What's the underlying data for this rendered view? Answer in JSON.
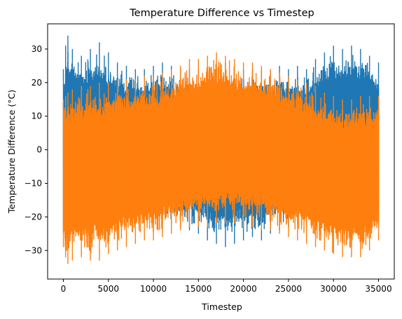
{
  "chart_data": {
    "type": "line",
    "title": "Temperature Difference vs Timestep",
    "xlabel": "Timestep",
    "ylabel": "Temperature Difference (°C)",
    "xlim": [
      -1750,
      36750
    ],
    "ylim": [
      -38.5,
      37.5
    ],
    "xticks": [
      0,
      5000,
      10000,
      15000,
      20000,
      25000,
      30000,
      35000
    ],
    "xtick_labels": [
      "0",
      "5000",
      "10000",
      "15000",
      "20000",
      "25000",
      "30000",
      "35000"
    ],
    "yticks": [
      -30,
      -20,
      -10,
      0,
      10,
      20,
      30
    ],
    "ytick_labels": [
      "−30",
      "−20",
      "−10",
      "0",
      "10",
      "20",
      "30"
    ],
    "grid": false,
    "legend": "none",
    "series": [
      {
        "color": "#1f77b4",
        "envelope": {
          "x": [
            0,
            250,
            500,
            1000,
            2000,
            3000,
            4000,
            5000,
            6000,
            7000,
            8000,
            9000,
            10000,
            11000,
            12000,
            13000,
            14000,
            15000,
            16000,
            17000,
            18000,
            19000,
            20000,
            21000,
            22000,
            23000,
            24000,
            25000,
            26000,
            27000,
            28000,
            29000,
            30000,
            31000,
            32000,
            33000,
            34000,
            35000
          ],
          "upper": [
            24,
            31,
            34,
            30,
            28,
            30,
            32,
            29,
            26,
            25,
            24,
            24,
            25,
            26,
            25,
            24,
            24,
            24,
            24,
            24,
            26,
            24,
            24,
            24,
            24,
            24,
            25,
            24,
            25,
            24,
            27,
            29,
            31,
            30,
            31,
            30,
            28,
            26
          ],
          "lower": [
            -25,
            -27,
            -28,
            -27,
            -26,
            -25,
            -25,
            -24,
            -23,
            -23,
            -22,
            -22,
            -21,
            -22,
            -22,
            -23,
            -24,
            -25,
            -27,
            -28,
            -29,
            -28,
            -27,
            -26,
            -27,
            -25,
            -24,
            -23,
            -22,
            -22,
            -22,
            -22,
            -22,
            -22,
            -22,
            -23,
            -22,
            -22
          ]
        }
      },
      {
        "color": "#ff7f0e",
        "envelope": {
          "x": [
            0,
            250,
            500,
            1000,
            2000,
            3000,
            4000,
            5000,
            6000,
            7000,
            8000,
            9000,
            10000,
            11000,
            12000,
            13000,
            14000,
            15000,
            16000,
            17000,
            18000,
            19000,
            20000,
            21000,
            22000,
            23000,
            24000,
            25000,
            26000,
            27000,
            28000,
            29000,
            30000,
            31000,
            32000,
            33000,
            34000,
            35000
          ],
          "upper": [
            15,
            16,
            17,
            18,
            19,
            19,
            20,
            20,
            21,
            21,
            21,
            22,
            22,
            23,
            24,
            25,
            27,
            27,
            28,
            29,
            28,
            27,
            26,
            26,
            25,
            24,
            23,
            22,
            21,
            20,
            19,
            17,
            16,
            15,
            15,
            16,
            16,
            16
          ],
          "lower": [
            -29,
            -32,
            -34,
            -33,
            -32,
            -33,
            -33,
            -31,
            -30,
            -29,
            -28,
            -27,
            -27,
            -26,
            -25,
            -24,
            -23,
            -23,
            -23,
            -22,
            -22,
            -22,
            -23,
            -23,
            -24,
            -24,
            -25,
            -26,
            -27,
            -28,
            -29,
            -30,
            -31,
            -32,
            -32,
            -32,
            -30,
            -27
          ]
        }
      }
    ]
  }
}
